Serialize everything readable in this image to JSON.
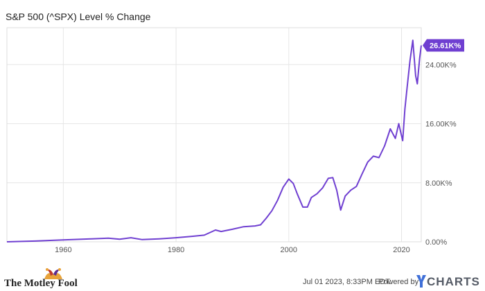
{
  "title": "S&P 500 (^SPX) Level % Change",
  "chart_data": {
    "type": "line",
    "title": "S&P 500 (^SPX) Level % Change",
    "xlabel": "",
    "ylabel": "",
    "x_ticks": [
      "1960",
      "1980",
      "2000",
      "2020"
    ],
    "y_ticks": [
      "0.00%",
      "8.00K%",
      "16.00K%",
      "24.00K%"
    ],
    "xlim": [
      1950,
      2023.5
    ],
    "ylim": [
      0,
      29000
    ],
    "grid": true,
    "series": [
      {
        "color": "#6f3fd1",
        "last_value_label": "26.61K%",
        "points": [
          [
            1950,
            0
          ],
          [
            1955,
            100
          ],
          [
            1960,
            250
          ],
          [
            1965,
            400
          ],
          [
            1968,
            500
          ],
          [
            1970,
            350
          ],
          [
            1972,
            550
          ],
          [
            1974,
            300
          ],
          [
            1977,
            400
          ],
          [
            1980,
            550
          ],
          [
            1983,
            750
          ],
          [
            1985,
            900
          ],
          [
            1987,
            1600
          ],
          [
            1988,
            1400
          ],
          [
            1990,
            1700
          ],
          [
            1992,
            2050
          ],
          [
            1994,
            2150
          ],
          [
            1995,
            2300
          ],
          [
            1996,
            3200
          ],
          [
            1997,
            4200
          ],
          [
            1998,
            5600
          ],
          [
            1999,
            7400
          ],
          [
            2000,
            8500
          ],
          [
            2000.8,
            7900
          ],
          [
            2001.5,
            6500
          ],
          [
            2002.5,
            4700
          ],
          [
            2003.3,
            4700
          ],
          [
            2004,
            6000
          ],
          [
            2005,
            6500
          ],
          [
            2006,
            7300
          ],
          [
            2007,
            8600
          ],
          [
            2007.8,
            8700
          ],
          [
            2008.5,
            7000
          ],
          [
            2009.2,
            4300
          ],
          [
            2010,
            6200
          ],
          [
            2011,
            7000
          ],
          [
            2012,
            7500
          ],
          [
            2013,
            9200
          ],
          [
            2014,
            10800
          ],
          [
            2015,
            11600
          ],
          [
            2016,
            11400
          ],
          [
            2017,
            13000
          ],
          [
            2018,
            15300
          ],
          [
            2018.9,
            14000
          ],
          [
            2019.5,
            16000
          ],
          [
            2020.2,
            13700
          ],
          [
            2020.6,
            18000
          ],
          [
            2021,
            21000
          ],
          [
            2021.5,
            24500
          ],
          [
            2022,
            27300
          ],
          [
            2022.5,
            22500
          ],
          [
            2022.8,
            21400
          ],
          [
            2023.2,
            24800
          ],
          [
            2023.5,
            26610
          ]
        ]
      }
    ]
  },
  "footer": {
    "brand": "The Motley Fool",
    "timestamp": "Jul 01 2023, 8:33PM EDT.",
    "powered_by": "Powered by",
    "ycharts": "CHARTS"
  }
}
